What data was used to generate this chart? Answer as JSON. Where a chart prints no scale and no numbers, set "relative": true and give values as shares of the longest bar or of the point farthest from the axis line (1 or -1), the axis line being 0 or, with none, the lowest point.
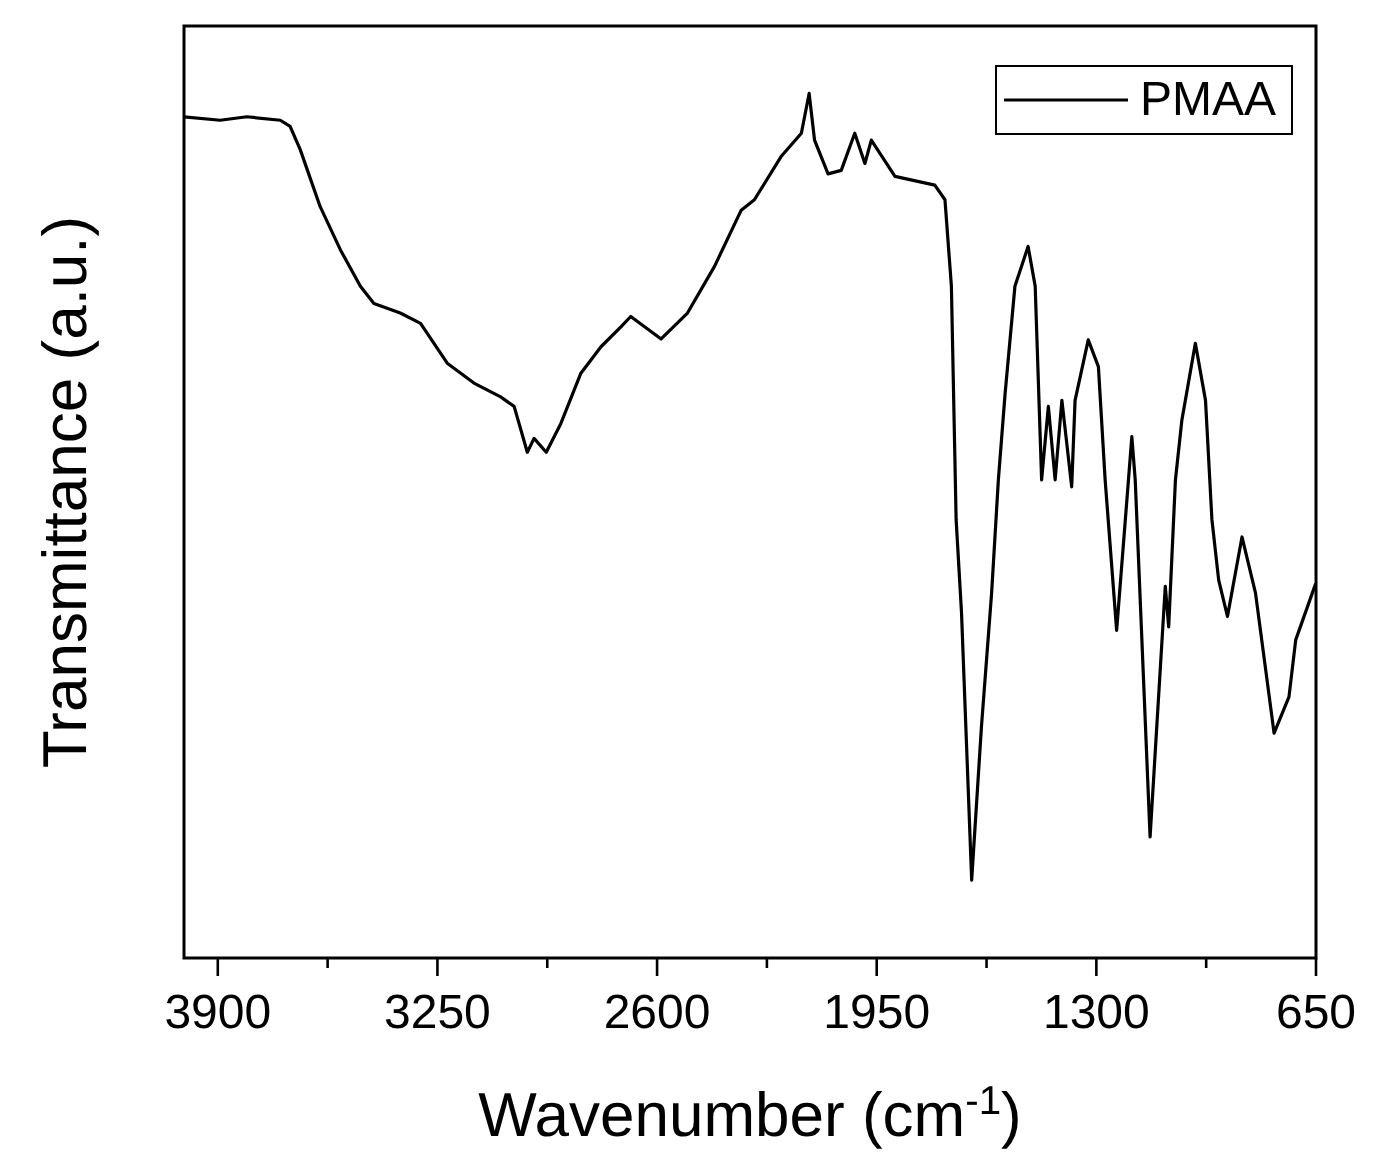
{
  "chart_data": {
    "type": "line",
    "xlabel": "Wavenumber (cm$^{-1}$)",
    "ylabel": "Transmittance (a.u.)",
    "relative": true,
    "xlim": [
      4000,
      650
    ],
    "xticks": [
      3900,
      {
        "value": 3575,
        "label": null
      },
      3250,
      {
        "value": 2925,
        "label": null
      },
      2600,
      {
        "value": 2275,
        "label": null
      },
      1950,
      {
        "value": 1625,
        "label": null
      },
      1300,
      {
        "value": 975,
        "label": null
      },
      650
    ],
    "legend": "top right",
    "grid": false,
    "x": [
      4000,
      3893,
      3814,
      3715,
      3686,
      3656,
      3597,
      3537,
      3478,
      3438,
      3360,
      3300,
      3221,
      3142,
      3063,
      3023,
      2984,
      2964,
      2928,
      2885,
      2826,
      2766,
      2707,
      2678,
      2588,
      2510,
      2430,
      2351,
      2312,
      2233,
      2173,
      2150,
      2134,
      2094,
      2055,
      2015,
      1985,
      1966,
      1896,
      1778,
      1748,
      1729,
      1715,
      1699,
      1669,
      1640,
      1610,
      1590,
      1570,
      1541,
      1502,
      1481,
      1462,
      1442,
      1422,
      1402,
      1373,
      1363,
      1324,
      1294,
      1274,
      1240,
      1205,
      1195,
      1185,
      1141,
      1096,
      1086,
      1066,
      1047,
      1007,
      977,
      958,
      938,
      912,
      869,
      829,
      774,
      730,
      710,
      651
    ],
    "series": [
      {
        "name": "PMAA",
        "color": "#000000",
        "values": [
          0.973,
          0.969,
          0.973,
          0.969,
          0.962,
          0.935,
          0.869,
          0.819,
          0.777,
          0.757,
          0.746,
          0.734,
          0.688,
          0.665,
          0.649,
          0.638,
          0.585,
          0.601,
          0.585,
          0.618,
          0.676,
          0.707,
          0.73,
          0.742,
          0.716,
          0.746,
          0.8,
          0.865,
          0.877,
          0.927,
          0.954,
          1.0,
          0.946,
          0.907,
          0.911,
          0.954,
          0.919,
          0.946,
          0.904,
          0.894,
          0.877,
          0.777,
          0.507,
          0.399,
          0.09,
          0.268,
          0.422,
          0.553,
          0.653,
          0.777,
          0.823,
          0.777,
          0.553,
          0.638,
          0.553,
          0.645,
          0.545,
          0.645,
          0.715,
          0.684,
          0.553,
          0.379,
          0.553,
          0.603,
          0.553,
          0.14,
          0.43,
          0.383,
          0.553,
          0.622,
          0.711,
          0.645,
          0.507,
          0.437,
          0.395,
          0.487,
          0.422,
          0.26,
          0.302,
          0.368,
          0.433
        ]
      }
    ]
  }
}
